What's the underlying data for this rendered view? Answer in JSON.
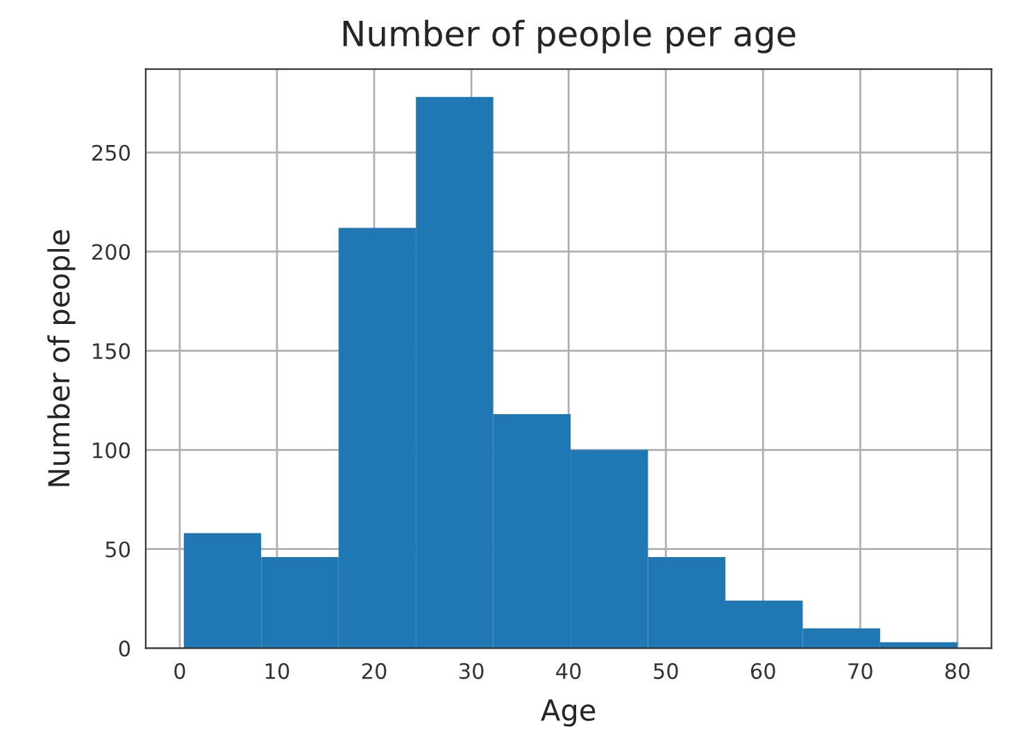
{
  "chart_data": {
    "type": "histogram",
    "title": "Number of people per age",
    "xlabel": "Age",
    "ylabel": "Number of people",
    "bins": [
      0.42,
      8.378,
      16.336,
      24.294,
      32.252,
      40.21,
      48.168,
      56.126,
      64.084,
      72.042,
      80.0
    ],
    "values": [
      58,
      46,
      212,
      278,
      118,
      100,
      46,
      24,
      10,
      3
    ],
    "color": "#1f77b4",
    "xlim": [
      -3.5,
      83.5
    ],
    "ylim": [
      0,
      292
    ],
    "xticks": [
      0,
      10,
      20,
      30,
      40,
      50,
      60,
      70,
      80
    ],
    "yticks": [
      0,
      50,
      100,
      150,
      200,
      250
    ],
    "grid": true
  }
}
